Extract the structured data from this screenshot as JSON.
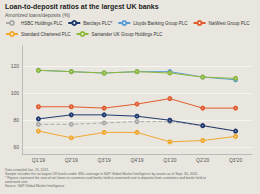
{
  "chart_data": {
    "type": "line",
    "title": "Loan-to-deposit ratios at the largest UK banks",
    "subtitle": "Amortized loans/deposits (%)",
    "categories": [
      "Q1'19",
      "Q2'19",
      "Q3'19",
      "Q4'19",
      "Q1'20",
      "Q2'20",
      "Q3'20"
    ],
    "series": [
      {
        "name": "HSBC Holdings PLC",
        "color": "#aaaaaa",
        "line_style": "dashed",
        "marker": "circle",
        "values": [
          77,
          77,
          78,
          79,
          79,
          76,
          72
        ]
      },
      {
        "name": "Barclays PLC*",
        "color": "#1f3a6e",
        "line_style": "solid",
        "marker": "circle",
        "values": [
          81,
          84,
          84,
          83,
          80,
          76,
          72
        ]
      },
      {
        "name": "Lloyds Banking Group PLC",
        "color": "#5b9bd5",
        "line_style": "solid",
        "marker": "circle",
        "values": [
          117,
          116,
          115,
          116,
          116,
          112,
          110
        ]
      },
      {
        "name": "NatWest Group PLC",
        "color": "#e05c30",
        "line_style": "solid",
        "marker": "circle",
        "values": [
          90,
          90,
          89,
          92,
          96,
          89,
          89
        ]
      },
      {
        "name": "Standard Chartered PLC",
        "color": "#f0a830",
        "line_style": "solid",
        "marker": "circle",
        "values": [
          72,
          67,
          71,
          71,
          64,
          65,
          68
        ]
      },
      {
        "name": "Santander UK Group Holdings PLC",
        "color": "#8db83a",
        "line_style": "solid",
        "marker": "circle",
        "values": [
          117,
          116,
          115,
          116,
          115,
          112,
          111
        ]
      }
    ],
    "ylim": [
      55,
      135
    ],
    "yticks": [
      60,
      80,
      100,
      120
    ],
    "grid": true,
    "legend": "top",
    "annotations": [
      "Data compiled Jan. 19, 2021.",
      "Sample includes the six largest UK banks under SNL coverage in S&P Global Market Intelligence by assets as of Sept. 30, 2020.",
      "* Figures represent the ratio of net loans to customers and banks held at amortized cost to deposits from customers and banks held at",
      "amortized cost.",
      "Source: S&P Global Market Intelligence"
    ]
  }
}
